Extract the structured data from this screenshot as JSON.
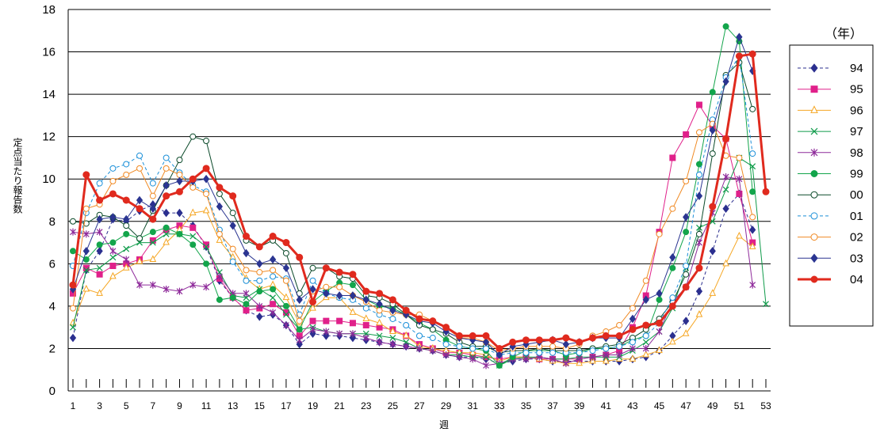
{
  "chart_data": {
    "type": "line",
    "title": "",
    "xlabel": "週",
    "ylabel": "定点当たり報告数",
    "legend_title": "（年）",
    "legend_position": "right",
    "grid": "horizontal",
    "xlim": [
      1,
      53
    ],
    "ylim": [
      0,
      18
    ],
    "yticks": [
      0,
      2,
      4,
      6,
      8,
      10,
      12,
      14,
      16,
      18
    ],
    "xtick_labels": [
      "1",
      "3",
      "5",
      "7",
      "9",
      "11",
      "13",
      "15",
      "17",
      "19",
      "21",
      "23",
      "25",
      "27",
      "29",
      "31",
      "33",
      "35",
      "37",
      "39",
      "41",
      "43",
      "45",
      "47",
      "49",
      "51",
      "53"
    ],
    "series": [
      {
        "name": "94",
        "color": "#2b2f8f",
        "dash": "4,3",
        "width": 1,
        "marker": "diamond",
        "fill": true,
        "values": [
          2.5,
          5.7,
          6.6,
          8.1,
          8.0,
          8.5,
          8.8,
          8.4,
          8.4,
          7.8,
          6.8,
          5.2,
          4.4,
          3.8,
          3.5,
          3.6,
          3.1,
          2.2,
          2.7,
          2.6,
          2.6,
          2.5,
          2.4,
          2.3,
          2.2,
          2.1,
          2.0,
          1.9,
          1.7,
          1.6,
          1.6,
          1.5,
          1.3,
          1.4,
          1.5,
          1.5,
          1.4,
          1.4,
          1.4,
          1.4,
          1.4,
          1.4,
          1.5,
          1.6,
          1.9,
          2.6,
          3.3,
          4.7,
          6.6,
          8.6,
          9.3,
          7.6,
          null
        ]
      },
      {
        "name": "95",
        "color": "#e0208a",
        "dash": "",
        "width": 1,
        "marker": "square",
        "fill": true,
        "values": [
          4.6,
          5.8,
          5.5,
          5.9,
          6.0,
          6.2,
          7.1,
          7.6,
          7.8,
          7.7,
          6.9,
          5.3,
          4.4,
          3.8,
          3.9,
          4.1,
          3.7,
          2.6,
          3.3,
          3.3,
          3.3,
          3.2,
          3.1,
          3.0,
          2.9,
          2.6,
          2.2,
          2.0,
          1.8,
          1.8,
          1.7,
          1.6,
          1.5,
          1.6,
          1.6,
          1.5,
          1.5,
          1.5,
          1.5,
          1.6,
          1.7,
          1.9,
          3.0,
          4.5,
          7.5,
          11.0,
          12.1,
          13.5,
          12.5,
          11.9,
          9.3,
          7.0,
          null
        ]
      },
      {
        "name": "96",
        "color": "#f5a623",
        "dash": "",
        "width": 1,
        "marker": "triangle",
        "fill": false,
        "values": [
          3.2,
          4.8,
          4.6,
          5.4,
          5.8,
          6.1,
          6.2,
          7.0,
          7.6,
          8.4,
          8.5,
          7.1,
          6.3,
          5.3,
          4.8,
          5.0,
          4.4,
          3.2,
          3.9,
          4.4,
          4.4,
          3.7,
          3.4,
          3.2,
          2.8,
          2.6,
          2.1,
          2.0,
          1.9,
          1.8,
          1.8,
          1.7,
          1.4,
          1.6,
          1.6,
          1.5,
          1.4,
          1.3,
          1.3,
          1.4,
          1.4,
          1.5,
          1.5,
          1.7,
          1.9,
          2.3,
          2.7,
          3.6,
          4.6,
          6.0,
          7.3,
          6.8,
          null
        ]
      },
      {
        "name": "97",
        "color": "#0f9b4a",
        "dash": "",
        "width": 1,
        "marker": "x",
        "fill": false,
        "values": [
          3.0,
          5.7,
          5.8,
          6.3,
          6.7,
          7.0,
          7.0,
          7.4,
          7.4,
          7.3,
          6.8,
          5.6,
          4.5,
          4.4,
          4.8,
          4.4,
          3.6,
          2.9,
          3.0,
          2.8,
          2.7,
          2.7,
          2.7,
          2.6,
          2.5,
          2.3,
          2.0,
          1.9,
          1.7,
          1.7,
          1.6,
          1.6,
          1.2,
          1.5,
          1.6,
          1.6,
          1.5,
          1.5,
          1.6,
          1.6,
          1.6,
          1.6,
          1.9,
          2.3,
          2.8,
          3.9,
          5.8,
          7.7,
          8.0,
          9.5,
          11.0,
          10.6,
          4.1
        ]
      },
      {
        "name": "98",
        "color": "#8e2a9a",
        "dash": "",
        "width": 1,
        "marker": "star",
        "fill": false,
        "values": [
          7.5,
          7.4,
          7.5,
          6.6,
          6.2,
          5.0,
          5.0,
          4.8,
          4.7,
          5.0,
          4.9,
          5.4,
          4.6,
          4.6,
          4.0,
          3.7,
          3.1,
          2.4,
          2.9,
          2.8,
          2.7,
          2.7,
          2.5,
          2.3,
          2.2,
          2.1,
          2.0,
          1.9,
          1.7,
          1.6,
          1.5,
          1.2,
          1.3,
          1.5,
          1.5,
          1.6,
          1.5,
          1.3,
          1.5,
          1.6,
          1.7,
          1.7,
          2.0,
          2.0,
          2.8,
          4.2,
          4.9,
          7.0,
          8.4,
          10.1,
          10.0,
          5.0,
          null
        ]
      },
      {
        "name": "99",
        "color": "#13a54b",
        "dash": "",
        "width": 1,
        "marker": "circle",
        "fill": true,
        "values": [
          6.6,
          6.2,
          6.9,
          7.0,
          7.4,
          7.2,
          7.5,
          7.7,
          7.4,
          6.9,
          6.0,
          4.3,
          4.4,
          4.1,
          4.7,
          4.8,
          4.0,
          2.9,
          4.2,
          4.7,
          5.1,
          5.0,
          4.3,
          4.0,
          3.9,
          3.6,
          3.2,
          2.9,
          2.4,
          2.1,
          2.0,
          1.9,
          1.2,
          1.6,
          1.9,
          1.9,
          1.9,
          1.7,
          1.8,
          2.0,
          2.0,
          2.1,
          2.4,
          2.6,
          4.3,
          5.8,
          7.5,
          10.7,
          14.1,
          17.2,
          16.5,
          9.4,
          null
        ]
      },
      {
        "name": "00",
        "color": "#0b4a2a",
        "dash": "",
        "width": 1,
        "marker": "circle",
        "fill": false,
        "values": [
          8.0,
          7.9,
          8.3,
          8.2,
          7.8,
          7.2,
          8.5,
          9.7,
          10.9,
          12.0,
          11.8,
          9.3,
          8.4,
          7.1,
          6.8,
          7.1,
          6.5,
          4.6,
          5.8,
          5.8,
          5.4,
          5.3,
          4.5,
          4.4,
          4.1,
          3.6,
          3.1,
          2.9,
          2.7,
          2.3,
          2.1,
          2.1,
          1.8,
          1.9,
          1.9,
          2.0,
          1.9,
          1.9,
          1.9,
          2.0,
          2.1,
          2.2,
          2.5,
          2.9,
          3.4,
          4.2,
          5.5,
          7.4,
          11.2,
          14.9,
          15.5,
          13.3,
          null
        ]
      },
      {
        "name": "01",
        "color": "#1a8fd8",
        "dash": "4,3",
        "width": 1,
        "marker": "circle",
        "fill": false,
        "values": [
          5.9,
          8.4,
          9.8,
          10.5,
          10.7,
          11.1,
          9.8,
          11.0,
          10.3,
          9.7,
          9.4,
          7.6,
          6.1,
          5.2,
          5.2,
          5.4,
          5.3,
          3.6,
          5.2,
          4.6,
          4.4,
          4.3,
          3.9,
          3.6,
          3.4,
          3.1,
          2.6,
          2.5,
          2.2,
          2.1,
          2.0,
          2.0,
          1.7,
          1.8,
          1.8,
          1.8,
          1.8,
          1.8,
          1.8,
          1.9,
          2.0,
          2.1,
          2.3,
          2.6,
          3.2,
          4.4,
          5.9,
          10.2,
          12.8,
          14.8,
          15.8,
          11.2,
          null
        ]
      },
      {
        "name": "02",
        "color": "#f08a24",
        "dash": "",
        "width": 1,
        "marker": "circle",
        "fill": false,
        "values": [
          3.9,
          8.6,
          8.8,
          9.9,
          10.2,
          10.5,
          9.2,
          10.5,
          10.2,
          9.6,
          9.3,
          7.4,
          6.7,
          5.7,
          5.6,
          5.7,
          5.2,
          3.3,
          4.7,
          4.9,
          4.9,
          4.5,
          4.2,
          3.8,
          3.7,
          3.6,
          3.6,
          3.3,
          3.0,
          2.5,
          2.5,
          2.3,
          1.9,
          2.0,
          2.1,
          2.1,
          2.1,
          2.0,
          2.2,
          2.6,
          2.8,
          3.1,
          3.9,
          5.2,
          7.4,
          8.6,
          9.9,
          12.2,
          12.6,
          11.1,
          11.0,
          8.2,
          null
        ]
      },
      {
        "name": "03",
        "color": "#2b3591",
        "dash": "",
        "width": 1,
        "marker": "diamond",
        "fill": true,
        "values": [
          4.8,
          6.6,
          8.1,
          8.2,
          8.1,
          9.0,
          8.6,
          9.7,
          9.9,
          9.9,
          10.0,
          8.7,
          7.8,
          6.5,
          6.0,
          6.2,
          5.8,
          4.3,
          4.8,
          4.6,
          4.5,
          4.5,
          4.3,
          4.1,
          3.8,
          3.6,
          3.3,
          3.2,
          2.8,
          2.5,
          2.4,
          2.3,
          1.7,
          2.1,
          2.2,
          2.3,
          2.4,
          2.2,
          2.3,
          2.5,
          2.5,
          2.5,
          3.4,
          4.3,
          4.6,
          6.3,
          8.2,
          9.2,
          12.3,
          14.6,
          16.7,
          15.1,
          null
        ]
      },
      {
        "name": "04",
        "color": "#e02a1e",
        "dash": "",
        "width": 3,
        "marker": "circle",
        "fill": true,
        "values": [
          5.0,
          10.2,
          9.0,
          9.3,
          9.0,
          8.6,
          8.1,
          9.2,
          9.4,
          10.0,
          10.5,
          9.6,
          9.2,
          7.3,
          6.8,
          7.3,
          7.0,
          6.3,
          4.2,
          5.8,
          5.6,
          5.5,
          4.7,
          4.6,
          4.3,
          3.8,
          3.4,
          3.3,
          3.0,
          2.6,
          2.6,
          2.6,
          2.0,
          2.3,
          2.4,
          2.4,
          2.4,
          2.5,
          2.3,
          2.5,
          2.6,
          2.6,
          2.9,
          3.1,
          3.2,
          4.0,
          4.9,
          5.8,
          8.7,
          11.9,
          15.8,
          15.9,
          9.4
        ]
      }
    ]
  }
}
